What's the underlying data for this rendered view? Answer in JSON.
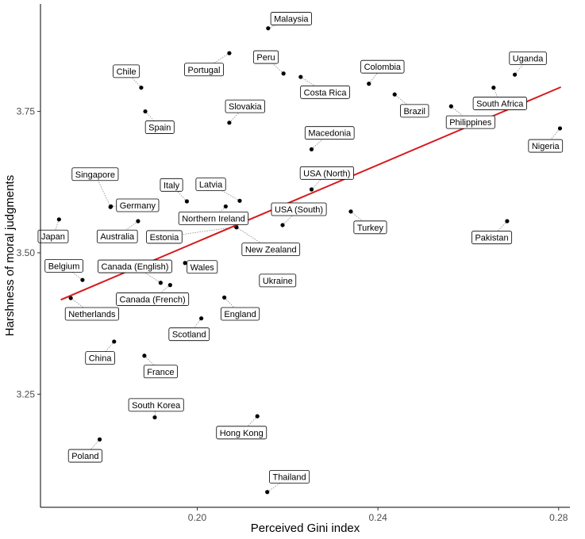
{
  "chart_data": {
    "type": "scatter",
    "xlabel": "Perceived Gini index",
    "ylabel": "Harshness of moral judgments",
    "xlim": [
      0.1653,
      0.2825
    ],
    "ylim": [
      3.05,
      3.94
    ],
    "x_ticks": [
      {
        "value": 0.2,
        "label": "0.20"
      },
      {
        "value": 0.24,
        "label": "0.24"
      },
      {
        "value": 0.28,
        "label": "0.28"
      }
    ],
    "y_ticks": [
      {
        "value": 3.25,
        "label": "3.25"
      },
      {
        "value": 3.5,
        "label": "3.50"
      },
      {
        "value": 3.75,
        "label": "3.75"
      }
    ],
    "fit_line": {
      "color": "#d7191c",
      "x": [
        0.1698,
        0.2805
      ],
      "y": [
        3.417,
        3.793
      ]
    },
    "grid": false,
    "legend": "none",
    "points": [
      {
        "name": "Malaysia",
        "x": 0.2157,
        "y": 3.897,
        "lx": 0.2208,
        "ly": 3.914
      },
      {
        "name": "Peru",
        "x": 0.2191,
        "y": 3.817,
        "lx": 0.2152,
        "ly": 3.846
      },
      {
        "name": "Costa Rica",
        "x": 0.2229,
        "y": 3.811,
        "lx": 0.2283,
        "ly": 3.784
      },
      {
        "name": "Portugal",
        "x": 0.2071,
        "y": 3.853,
        "lx": 0.2015,
        "ly": 3.824
      },
      {
        "name": "Chile",
        "x": 0.1876,
        "y": 3.792,
        "lx": 0.1843,
        "ly": 3.821
      },
      {
        "name": "Colombia",
        "x": 0.238,
        "y": 3.799,
        "lx": 0.241,
        "ly": 3.829
      },
      {
        "name": "Uganda",
        "x": 0.2703,
        "y": 3.815,
        "lx": 0.2732,
        "ly": 3.844
      },
      {
        "name": "Brazil",
        "x": 0.2437,
        "y": 3.78,
        "lx": 0.2481,
        "ly": 3.751
      },
      {
        "name": "South Africa",
        "x": 0.2656,
        "y": 3.792,
        "lx": 0.267,
        "ly": 3.764
      },
      {
        "name": "Philippines",
        "x": 0.2562,
        "y": 3.759,
        "lx": 0.2605,
        "ly": 3.731
      },
      {
        "name": "Spain",
        "x": 0.1885,
        "y": 3.75,
        "lx": 0.1917,
        "ly": 3.722
      },
      {
        "name": "Slovakia",
        "x": 0.2071,
        "y": 3.73,
        "lx": 0.2106,
        "ly": 3.759
      },
      {
        "name": "Macedonia",
        "x": 0.2253,
        "y": 3.683,
        "lx": 0.2293,
        "ly": 3.712
      },
      {
        "name": "Nigeria",
        "x": 0.2803,
        "y": 3.72,
        "lx": 0.2771,
        "ly": 3.689
      },
      {
        "name": "USA (North)",
        "x": 0.2253,
        "y": 3.612,
        "lx": 0.2287,
        "ly": 3.641
      },
      {
        "name": "Singapore",
        "x": 0.1808,
        "y": 3.581,
        "lx": 0.1774,
        "ly": 3.639
      },
      {
        "name": "Italy",
        "x": 0.1977,
        "y": 3.591,
        "lx": 0.1943,
        "ly": 3.62
      },
      {
        "name": "Latvia",
        "x": 0.2094,
        "y": 3.592,
        "lx": 0.203,
        "ly": 3.621
      },
      {
        "name": "Germany",
        "x": 0.1809,
        "y": 3.582,
        "lx": 0.1868,
        "ly": 3.584
      },
      {
        "name": "Northern Ireland",
        "x": 0.2063,
        "y": 3.582,
        "lx": 0.2036,
        "ly": 3.561
      },
      {
        "name": "USA (South)",
        "x": 0.2189,
        "y": 3.549,
        "lx": 0.2225,
        "ly": 3.577
      },
      {
        "name": "Japan",
        "x": 0.1694,
        "y": 3.559,
        "lx": 0.1681,
        "ly": 3.529
      },
      {
        "name": "Australia",
        "x": 0.1869,
        "y": 3.556,
        "lx": 0.1823,
        "ly": 3.529
      },
      {
        "name": "Estonia",
        "x": 0.2086,
        "y": 3.546,
        "lx": 0.1927,
        "ly": 3.528
      },
      {
        "name": "Turkey",
        "x": 0.234,
        "y": 3.573,
        "lx": 0.2383,
        "ly": 3.545
      },
      {
        "name": "Pakistan",
        "x": 0.2686,
        "y": 3.556,
        "lx": 0.2652,
        "ly": 3.527
      },
      {
        "name": "New Zealand",
        "x": 0.2087,
        "y": 3.545,
        "lx": 0.2163,
        "ly": 3.506
      },
      {
        "name": "Belgium",
        "x": 0.1746,
        "y": 3.452,
        "lx": 0.1705,
        "ly": 3.477
      },
      {
        "name": "Canada (English)",
        "x": 0.1919,
        "y": 3.447,
        "lx": 0.1862,
        "ly": 3.476
      },
      {
        "name": "Wales",
        "x": 0.1973,
        "y": 3.482,
        "lx": 0.2011,
        "ly": 3.475
      },
      {
        "name": "Ukraine",
        "x": 0.2146,
        "y": 3.448,
        "lx": 0.2178,
        "ly": 3.451
      },
      {
        "name": "Netherlands",
        "x": 0.172,
        "y": 3.42,
        "lx": 0.1767,
        "ly": 3.392
      },
      {
        "name": "Canada (French)",
        "x": 0.194,
        "y": 3.443,
        "lx": 0.1901,
        "ly": 3.418
      },
      {
        "name": "England",
        "x": 0.206,
        "y": 3.421,
        "lx": 0.2095,
        "ly": 3.392
      },
      {
        "name": "Scotland",
        "x": 0.2009,
        "y": 3.384,
        "lx": 0.1982,
        "ly": 3.356
      },
      {
        "name": "China",
        "x": 0.1816,
        "y": 3.343,
        "lx": 0.1785,
        "ly": 3.314
      },
      {
        "name": "France",
        "x": 0.1883,
        "y": 3.318,
        "lx": 0.1919,
        "ly": 3.29
      },
      {
        "name": "South Korea",
        "x": 0.1906,
        "y": 3.209,
        "lx": 0.1909,
        "ly": 3.231
      },
      {
        "name": "Hong Kong",
        "x": 0.2133,
        "y": 3.211,
        "lx": 0.2098,
        "ly": 3.182
      },
      {
        "name": "Poland",
        "x": 0.1784,
        "y": 3.17,
        "lx": 0.1752,
        "ly": 3.141
      },
      {
        "name": "Thailand",
        "x": 0.2155,
        "y": 3.077,
        "lx": 0.2204,
        "ly": 3.104
      }
    ]
  }
}
